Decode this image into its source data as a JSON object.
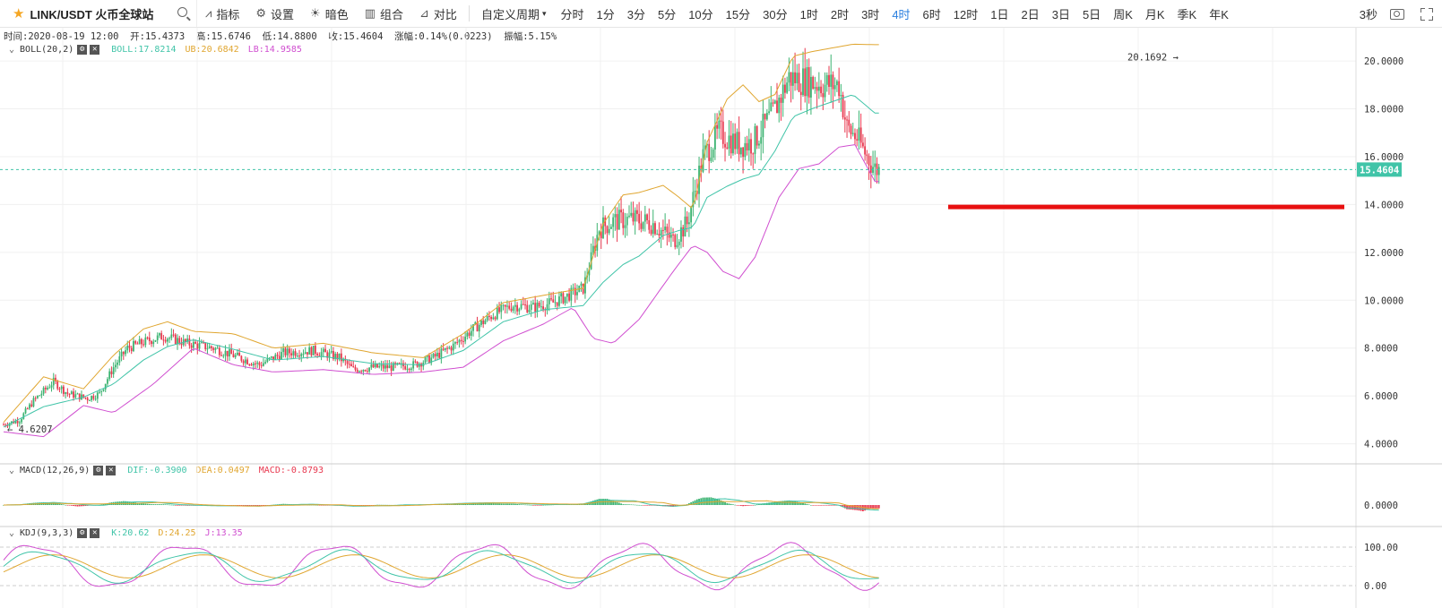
{
  "toolbar": {
    "symbol": "LINK/USDT 火币全球站",
    "tools": [
      {
        "icon": "indicator-icon",
        "label": "指标"
      },
      {
        "icon": "gear-icon",
        "label": "设置"
      },
      {
        "icon": "theme-icon",
        "label": "暗色"
      },
      {
        "icon": "combo-icon",
        "label": "组合"
      },
      {
        "icon": "compare-icon",
        "label": "对比"
      }
    ],
    "custom_period": "自定义周期",
    "periods": [
      "分时",
      "1分",
      "3分",
      "5分",
      "10分",
      "15分",
      "30分",
      "1时",
      "2时",
      "3时",
      "4时",
      "6时",
      "12时",
      "1日",
      "2日",
      "3日",
      "5日",
      "周K",
      "月K",
      "季K",
      "年K"
    ],
    "active_period": "4时",
    "refresh": "3秒"
  },
  "info": {
    "time": "时间:2020-08-19 12:00",
    "open": "开:15.4373",
    "high": "高:15.6746",
    "low": "低:14.8800",
    "close": "收:15.4604",
    "change": "涨幅:0.14%(0.0223)",
    "amplitude": "振幅:5.15%"
  },
  "boll_legend": {
    "name": "BOLL(20,2)",
    "boll": "BOLL:17.8214",
    "ub": "UB:20.6842",
    "lb": "LB:14.9585"
  },
  "macd_legend": {
    "name": "MACD(12,26,9)",
    "dif": "DIF:-0.3900",
    "dea": "DEA:0.0497",
    "macd": "MACD:-0.8793"
  },
  "kdj_legend": {
    "name": "KDJ(9,3,3)",
    "k": "K:20.62",
    "d": "D:24.25",
    "j": "J:13.35"
  },
  "colors": {
    "up": "#3cb371",
    "down": "#e8384f",
    "boll": "#40c4a8",
    "ub": "#e0a630",
    "lb": "#d04fd0",
    "support": "#e81010",
    "active": "#2a7fdf"
  },
  "price_axis": [
    "20.0000",
    "18.0000",
    "16.0000",
    "14.0000",
    "12.0000",
    "10.0000",
    "8.0000",
    "6.0000",
    "4.0000"
  ],
  "last_price": "15.4604",
  "max_label": "20.1692",
  "min_label": "4.6207",
  "macd_axis": [
    "0.0000"
  ],
  "kdj_axis": [
    "100.00",
    "0.00"
  ],
  "chart_data": {
    "type": "candlestick",
    "price_range": [
      3.2,
      21.2
    ],
    "support_level": 13.9,
    "anchors": [
      [
        0,
        4.8
      ],
      [
        8,
        5.0
      ],
      [
        15,
        5.8
      ],
      [
        25,
        6.6
      ],
      [
        32,
        6.1
      ],
      [
        42,
        5.9
      ],
      [
        48,
        6.1
      ],
      [
        55,
        7.2
      ],
      [
        62,
        8.0
      ],
      [
        72,
        8.3
      ],
      [
        80,
        8.5
      ],
      [
        92,
        8.2
      ],
      [
        105,
        8.0
      ],
      [
        118,
        7.6
      ],
      [
        128,
        7.3
      ],
      [
        140,
        7.8
      ],
      [
        155,
        7.9
      ],
      [
        168,
        7.6
      ],
      [
        175,
        7.1
      ],
      [
        185,
        7.2
      ],
      [
        195,
        7.2
      ],
      [
        205,
        7.3
      ],
      [
        215,
        7.6
      ],
      [
        225,
        8.1
      ],
      [
        235,
        8.8
      ],
      [
        245,
        9.4
      ],
      [
        255,
        9.8
      ],
      [
        265,
        9.7
      ],
      [
        275,
        9.9
      ],
      [
        285,
        10.3
      ],
      [
        290,
        10.5
      ],
      [
        298,
        13.0
      ],
      [
        305,
        13.3
      ],
      [
        315,
        13.4
      ],
      [
        325,
        13.2
      ],
      [
        335,
        12.5
      ],
      [
        342,
        13.2
      ],
      [
        350,
        16.0
      ],
      [
        358,
        17.0
      ],
      [
        368,
        16.5
      ],
      [
        375,
        16.6
      ],
      [
        385,
        17.8
      ],
      [
        393,
        19.3
      ],
      [
        400,
        19.2
      ],
      [
        410,
        19.0
      ],
      [
        418,
        19.0
      ],
      [
        422,
        17.2
      ],
      [
        427,
        16.8
      ],
      [
        432,
        16.0
      ],
      [
        436,
        15.5
      ],
      [
        438,
        15.46
      ]
    ],
    "ub_anchors": [
      [
        0,
        4.9
      ],
      [
        20,
        6.8
      ],
      [
        40,
        6.3
      ],
      [
        55,
        7.7
      ],
      [
        70,
        8.8
      ],
      [
        82,
        9.1
      ],
      [
        95,
        8.7
      ],
      [
        115,
        8.6
      ],
      [
        135,
        8.0
      ],
      [
        160,
        8.2
      ],
      [
        185,
        7.8
      ],
      [
        210,
        7.6
      ],
      [
        230,
        8.6
      ],
      [
        250,
        9.9
      ],
      [
        270,
        10.2
      ],
      [
        290,
        10.5
      ],
      [
        300,
        13.2
      ],
      [
        310,
        14.4
      ],
      [
        318,
        14.5
      ],
      [
        330,
        14.8
      ],
      [
        338,
        14.3
      ],
      [
        345,
        13.8
      ],
      [
        352,
        16.6
      ],
      [
        362,
        18.4
      ],
      [
        370,
        19.0
      ],
      [
        378,
        18.3
      ],
      [
        386,
        18.6
      ],
      [
        395,
        20.2
      ],
      [
        405,
        20.4
      ],
      [
        425,
        20.7
      ],
      [
        436,
        20.68
      ]
    ],
    "lb_anchors": [
      [
        0,
        4.5
      ],
      [
        20,
        4.3
      ],
      [
        40,
        5.6
      ],
      [
        55,
        5.3
      ],
      [
        75,
        6.5
      ],
      [
        95,
        8.0
      ],
      [
        115,
        7.3
      ],
      [
        135,
        7.0
      ],
      [
        160,
        7.1
      ],
      [
        185,
        6.9
      ],
      [
        210,
        7.0
      ],
      [
        230,
        7.2
      ],
      [
        250,
        8.3
      ],
      [
        270,
        9.0
      ],
      [
        285,
        9.7
      ],
      [
        295,
        8.4
      ],
      [
        305,
        8.2
      ],
      [
        318,
        9.2
      ],
      [
        335,
        11.2
      ],
      [
        345,
        12.3
      ],
      [
        352,
        12.0
      ],
      [
        360,
        11.2
      ],
      [
        368,
        10.9
      ],
      [
        376,
        11.8
      ],
      [
        388,
        14.3
      ],
      [
        398,
        15.5
      ],
      [
        408,
        15.7
      ],
      [
        418,
        16.4
      ],
      [
        426,
        16.5
      ],
      [
        436,
        14.96
      ]
    ]
  }
}
